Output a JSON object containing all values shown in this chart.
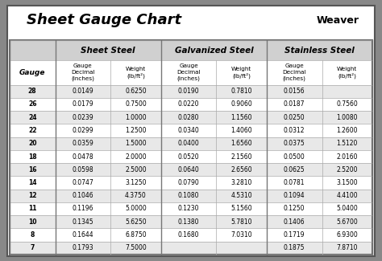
{
  "title": "Sheet Gauge Chart",
  "background_outer": "#888888",
  "background_inner": "#ffffff",
  "header_bg": "#d0d0d0",
  "row_bg_odd": "#e8e8e8",
  "row_bg_even": "#ffffff",
  "gauges": [
    28,
    26,
    24,
    22,
    20,
    18,
    16,
    14,
    12,
    11,
    10,
    8,
    7
  ],
  "sheet_steel": [
    [
      "0.0149",
      "0.6250"
    ],
    [
      "0.0179",
      "0.7500"
    ],
    [
      "0.0239",
      "1.0000"
    ],
    [
      "0.0299",
      "1.2500"
    ],
    [
      "0.0359",
      "1.5000"
    ],
    [
      "0.0478",
      "2.0000"
    ],
    [
      "0.0598",
      "2.5000"
    ],
    [
      "0.0747",
      "3.1250"
    ],
    [
      "0.1046",
      "4.3750"
    ],
    [
      "0.1196",
      "5.0000"
    ],
    [
      "0.1345",
      "5.6250"
    ],
    [
      "0.1644",
      "6.8750"
    ],
    [
      "0.1793",
      "7.5000"
    ]
  ],
  "galvanized_steel": [
    [
      "0.0190",
      "0.7810"
    ],
    [
      "0.0220",
      "0.9060"
    ],
    [
      "0.0280",
      "1.1560"
    ],
    [
      "0.0340",
      "1.4060"
    ],
    [
      "0.0400",
      "1.6560"
    ],
    [
      "0.0520",
      "2.1560"
    ],
    [
      "0.0640",
      "2.6560"
    ],
    [
      "0.0790",
      "3.2810"
    ],
    [
      "0.1080",
      "4.5310"
    ],
    [
      "0.1230",
      "5.1560"
    ],
    [
      "0.1380",
      "5.7810"
    ],
    [
      "0.1680",
      "7.0310"
    ],
    [
      "",
      ""
    ]
  ],
  "stainless_steel": [
    [
      "0.0156",
      ""
    ],
    [
      "0.0187",
      "0.7560"
    ],
    [
      "0.0250",
      "1.0080"
    ],
    [
      "0.0312",
      "1.2600"
    ],
    [
      "0.0375",
      "1.5120"
    ],
    [
      "0.0500",
      "2.0160"
    ],
    [
      "0.0625",
      "2.5200"
    ],
    [
      "0.0781",
      "3.1500"
    ],
    [
      "0.1094",
      "4.4100"
    ],
    [
      "0.1250",
      "5.0400"
    ],
    [
      "0.1406",
      "5.6700"
    ],
    [
      "0.1719",
      "6.9300"
    ],
    [
      "0.1875",
      "7.8710"
    ]
  ]
}
